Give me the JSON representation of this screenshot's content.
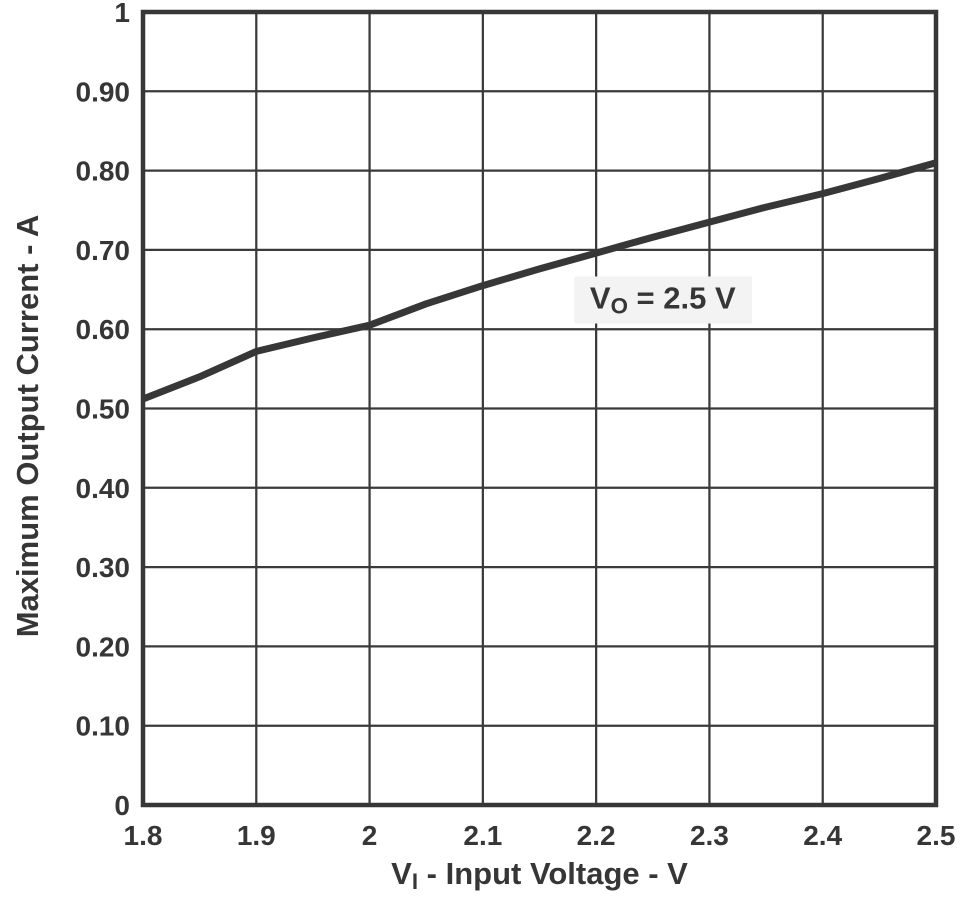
{
  "chart_data": {
    "type": "line",
    "title": "",
    "ylabel": "Maximum Output Current - A",
    "xlabel": "VI - Input Voltage - V",
    "xlabel_parts": {
      "symbol": "V",
      "subscript": "I",
      "rest": " - Input Voltage - V"
    },
    "xlim": [
      1.8,
      2.5
    ],
    "ylim": [
      0,
      1
    ],
    "grid": true,
    "legend": false,
    "x_ticks": [
      {
        "v": 1.8,
        "label": "1.8"
      },
      {
        "v": 1.9,
        "label": "1.9"
      },
      {
        "v": 2.0,
        "label": "2"
      },
      {
        "v": 2.1,
        "label": "2.1"
      },
      {
        "v": 2.2,
        "label": "2.2"
      },
      {
        "v": 2.3,
        "label": "2.3"
      },
      {
        "v": 2.4,
        "label": "2.4"
      },
      {
        "v": 2.5,
        "label": "2.5"
      }
    ],
    "y_ticks": [
      {
        "v": 0.0,
        "label": "0"
      },
      {
        "v": 0.1,
        "label": "0.10"
      },
      {
        "v": 0.2,
        "label": "0.20"
      },
      {
        "v": 0.3,
        "label": "0.30"
      },
      {
        "v": 0.4,
        "label": "0.40"
      },
      {
        "v": 0.5,
        "label": "0.50"
      },
      {
        "v": 0.6,
        "label": "0.60"
      },
      {
        "v": 0.7,
        "label": "0.70"
      },
      {
        "v": 0.8,
        "label": "0.80"
      },
      {
        "v": 0.9,
        "label": "0.90"
      },
      {
        "v": 1.0,
        "label": "1"
      }
    ],
    "series": [
      {
        "name": "VO = 2.5 V",
        "points": [
          [
            1.8,
            0.512
          ],
          [
            1.85,
            0.54
          ],
          [
            1.9,
            0.572
          ],
          [
            1.95,
            0.589
          ],
          [
            2.0,
            0.605
          ],
          [
            2.05,
            0.632
          ],
          [
            2.1,
            0.655
          ],
          [
            2.15,
            0.676
          ],
          [
            2.2,
            0.696
          ],
          [
            2.25,
            0.716
          ],
          [
            2.3,
            0.735
          ],
          [
            2.35,
            0.754
          ],
          [
            2.4,
            0.771
          ],
          [
            2.45,
            0.79
          ],
          [
            2.5,
            0.81
          ]
        ]
      }
    ],
    "annotation": {
      "text": "VO = 2.5 V",
      "symbol": "V",
      "subscript": "O",
      "rest": " = 2.5 V",
      "x": 2.25,
      "y": 0.637
    }
  },
  "colors": {
    "line": "#373737",
    "grid": "#3a3a3a",
    "frame": "#373737",
    "text": "#363636",
    "annotation_bg": "#f3f3f3",
    "background": "#ffffff"
  }
}
